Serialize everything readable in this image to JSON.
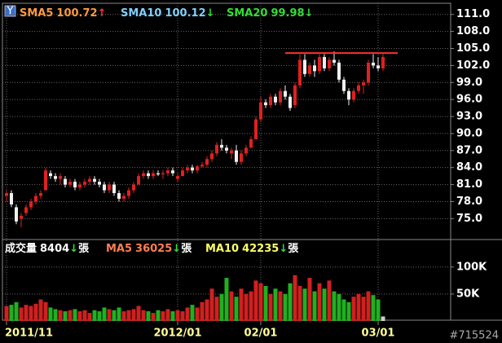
{
  "chart_data": [
    {
      "type": "candlestick",
      "header": [
        {
          "name": "SMA5",
          "value": 100.72,
          "arrow": "↑",
          "color": "#ff9a40",
          "arrow_color": "#ff3030"
        },
        {
          "name": "SMA10",
          "value": 100.12,
          "arrow": "↓",
          "color": "#7fd0ff",
          "arrow_color": "#33dd33"
        },
        {
          "name": "SMA20",
          "value": 99.98,
          "arrow": "↓",
          "color": "#33dd33",
          "arrow_color": "#33dd33"
        }
      ],
      "categories": [
        "2011/11",
        null,
        null,
        null,
        null,
        null,
        null,
        null,
        null,
        null,
        null,
        null,
        null,
        null,
        null,
        null,
        null,
        null,
        null,
        null,
        null,
        null,
        null,
        null,
        null,
        null,
        null,
        null,
        null,
        null,
        null,
        null,
        null,
        null,
        null,
        "2012/01",
        null,
        null,
        null,
        null,
        null,
        null,
        null,
        null,
        null,
        null,
        null,
        null,
        null,
        null,
        null,
        null,
        "02/01",
        null,
        null,
        null,
        null,
        null,
        null,
        null,
        null,
        null,
        null,
        null,
        null,
        null,
        null,
        null,
        null,
        null,
        null,
        null,
        null,
        null,
        null,
        null,
        "03/01",
        null
      ],
      "open": [
        79,
        79.5,
        77,
        75,
        76,
        77,
        78,
        79,
        80,
        83,
        82.5,
        82,
        82,
        81,
        81.5,
        80.5,
        81,
        81.5,
        82,
        81.5,
        81,
        80,
        81,
        79.5,
        78.5,
        79,
        80,
        81,
        82.5,
        83,
        82.5,
        83,
        82.8,
        83,
        83.5,
        82,
        82.5,
        83.5,
        84,
        83.5,
        84.2,
        84.5,
        85.5,
        86.5,
        88,
        87.5,
        86.5,
        87,
        85,
        86.5,
        87.5,
        89,
        92.5,
        95.5,
        95,
        96.5,
        95.5,
        97.5,
        96.5,
        95,
        98.5,
        103,
        100.5,
        102,
        101,
        103.5,
        101.5,
        103,
        102.5,
        99.5,
        97.5,
        96,
        97.5,
        98.5,
        99,
        102.5,
        102,
        101.5
      ],
      "high": [
        80,
        80,
        77.5,
        76,
        77.5,
        78.5,
        79.5,
        80,
        84,
        83.5,
        83,
        83,
        82.5,
        82,
        82,
        81.5,
        82,
        82.5,
        82.5,
        82,
        81.5,
        81.5,
        81.5,
        80,
        79.5,
        80.5,
        81.5,
        83,
        83.5,
        83.5,
        83.5,
        83.5,
        83.5,
        84,
        84,
        83,
        84,
        84.5,
        84.5,
        84.5,
        85,
        86,
        87,
        88.5,
        89,
        88,
        87.5,
        88,
        87,
        88,
        89.5,
        93,
        96.5,
        96,
        97,
        97,
        98,
        98.5,
        97,
        99,
        104,
        104,
        102.5,
        103,
        104,
        104,
        103.5,
        104.5,
        103,
        100,
        98,
        98,
        99,
        99.5,
        103,
        104,
        103.5,
        104
      ],
      "low": [
        78,
        77,
        74,
        73.5,
        75.5,
        76.5,
        77.5,
        78.5,
        80,
        82,
        81.5,
        81,
        80.5,
        80.5,
        80,
        80,
        80.5,
        81,
        81,
        80.5,
        79.5,
        79.5,
        79,
        78,
        78,
        78.5,
        79.5,
        81,
        82,
        82,
        82,
        82.5,
        82,
        82.5,
        82.5,
        81.5,
        82.5,
        83,
        83,
        83,
        84,
        84,
        85,
        86,
        87,
        86.5,
        85.5,
        84.5,
        84.5,
        86,
        87.5,
        89,
        92,
        94.5,
        94.5,
        95,
        95,
        96,
        94,
        94.5,
        98,
        100,
        100,
        100,
        100.5,
        101,
        101,
        102,
        99,
        97,
        95,
        95.5,
        97,
        97,
        98.5,
        101.5,
        101,
        101
      ],
      "close": [
        79.5,
        77.5,
        74.5,
        75.5,
        77,
        78,
        79,
        79.5,
        83.5,
        82.5,
        82,
        82.5,
        81,
        81.5,
        80.5,
        81,
        81.5,
        82,
        81.5,
        81,
        80,
        81,
        79.5,
        78.5,
        79,
        80,
        81,
        82.5,
        83,
        82.5,
        83,
        82.8,
        83,
        83.5,
        83,
        82.5,
        83.5,
        84,
        83.5,
        84.2,
        84.5,
        85.5,
        86.5,
        88,
        87.5,
        87,
        87,
        85,
        86.5,
        87.5,
        89,
        92.5,
        95.5,
        95,
        96.5,
        95.5,
        97.5,
        96.5,
        94.5,
        98.5,
        103,
        100.5,
        102,
        101,
        103.5,
        101.5,
        103,
        102.5,
        99.5,
        97.5,
        96,
        97.5,
        98.5,
        99,
        102.5,
        102,
        101.5,
        103.5
      ],
      "up_color": "#e02020",
      "down_color": "#f0f0f0",
      "hline": {
        "value": 104.2,
        "color": "#ff3030"
      },
      "ylim": [
        71.6,
        112.4
      ],
      "yticks": [
        {
          "value": 111,
          "label": "111.0"
        },
        {
          "value": 108,
          "label": "108.0"
        },
        {
          "value": 105,
          "label": "105.0"
        },
        {
          "value": 102,
          "label": "102.0"
        },
        {
          "value": 99,
          "label": "99.0"
        },
        {
          "value": 96,
          "label": "96.0"
        },
        {
          "value": 93,
          "label": "93.0"
        },
        {
          "value": 90,
          "label": "90.0"
        },
        {
          "value": 87,
          "label": "87.0"
        },
        {
          "value": 84,
          "label": "84.0"
        },
        {
          "value": 81,
          "label": "81.0"
        },
        {
          "value": 78,
          "label": "78.0"
        },
        {
          "value": 75,
          "label": "75.0"
        }
      ],
      "grid": true
    },
    {
      "type": "bar",
      "header": [
        {
          "name": "成交量",
          "value": 8404,
          "arrow": "↓",
          "unit": "張",
          "color": "#ffffff",
          "arrow_color": "#33dd33"
        },
        {
          "name": "MA5",
          "value": 36025,
          "arrow": "↓",
          "unit": "張",
          "color": "#ff7f50",
          "arrow_color": "#33dd33"
        },
        {
          "name": "MA10",
          "value": 42235,
          "arrow": "↓",
          "unit": "張",
          "color": "#ffff66",
          "arrow_color": "#33dd33"
        }
      ],
      "values": [
        28000,
        30000,
        35000,
        25000,
        30000,
        28000,
        32000,
        40000,
        35000,
        25000,
        22000,
        20000,
        18000,
        20000,
        22000,
        18000,
        20000,
        15000,
        20000,
        18000,
        25000,
        22000,
        20000,
        25000,
        18000,
        20000,
        22000,
        28000,
        20000,
        18000,
        15000,
        20000,
        18000,
        22000,
        18000,
        20000,
        18000,
        25000,
        30000,
        25000,
        35000,
        40000,
        60000,
        45000,
        50000,
        80000,
        55000,
        45000,
        60000,
        50000,
        55000,
        75000,
        70000,
        65000,
        50000,
        60000,
        55000,
        50000,
        70000,
        85000,
        65000,
        60000,
        80000,
        55000,
        70000,
        60000,
        75000,
        55000,
        50000,
        40000,
        35000,
        45000,
        50000,
        45000,
        55000,
        48000,
        40000,
        8404
      ],
      "up_color": "#d02020",
      "down_color": "#20b020",
      "ylim": [
        0,
        148000
      ],
      "yticks": [
        {
          "value": 100000,
          "label": "100K"
        },
        {
          "value": 50000,
          "label": "50K"
        }
      ],
      "grid": true
    }
  ],
  "watermark": "#715524"
}
